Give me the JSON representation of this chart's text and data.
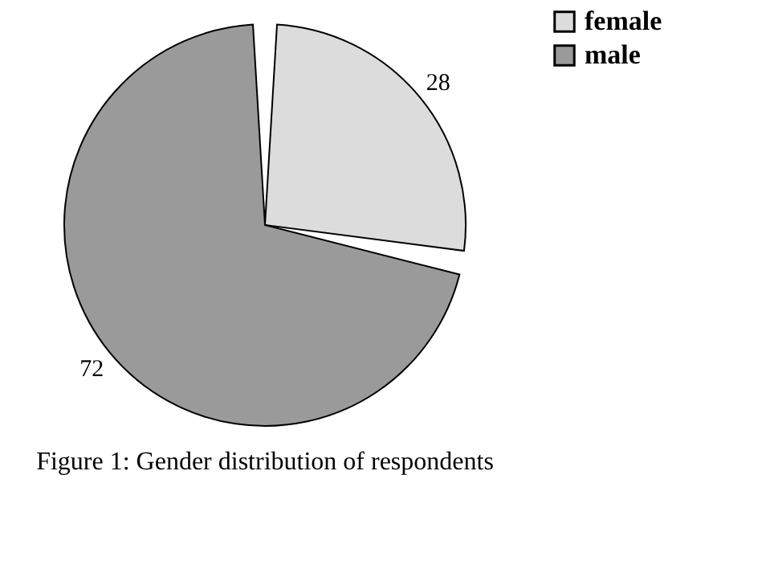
{
  "chart_data": {
    "type": "pie",
    "title": "Figure 1: Gender distribution of respondents",
    "categories": [
      "female",
      "male"
    ],
    "values": [
      28,
      72
    ],
    "colors": [
      "#dcdcdc",
      "#9a9a9a"
    ],
    "data_labels": true,
    "legend": "right"
  }
}
